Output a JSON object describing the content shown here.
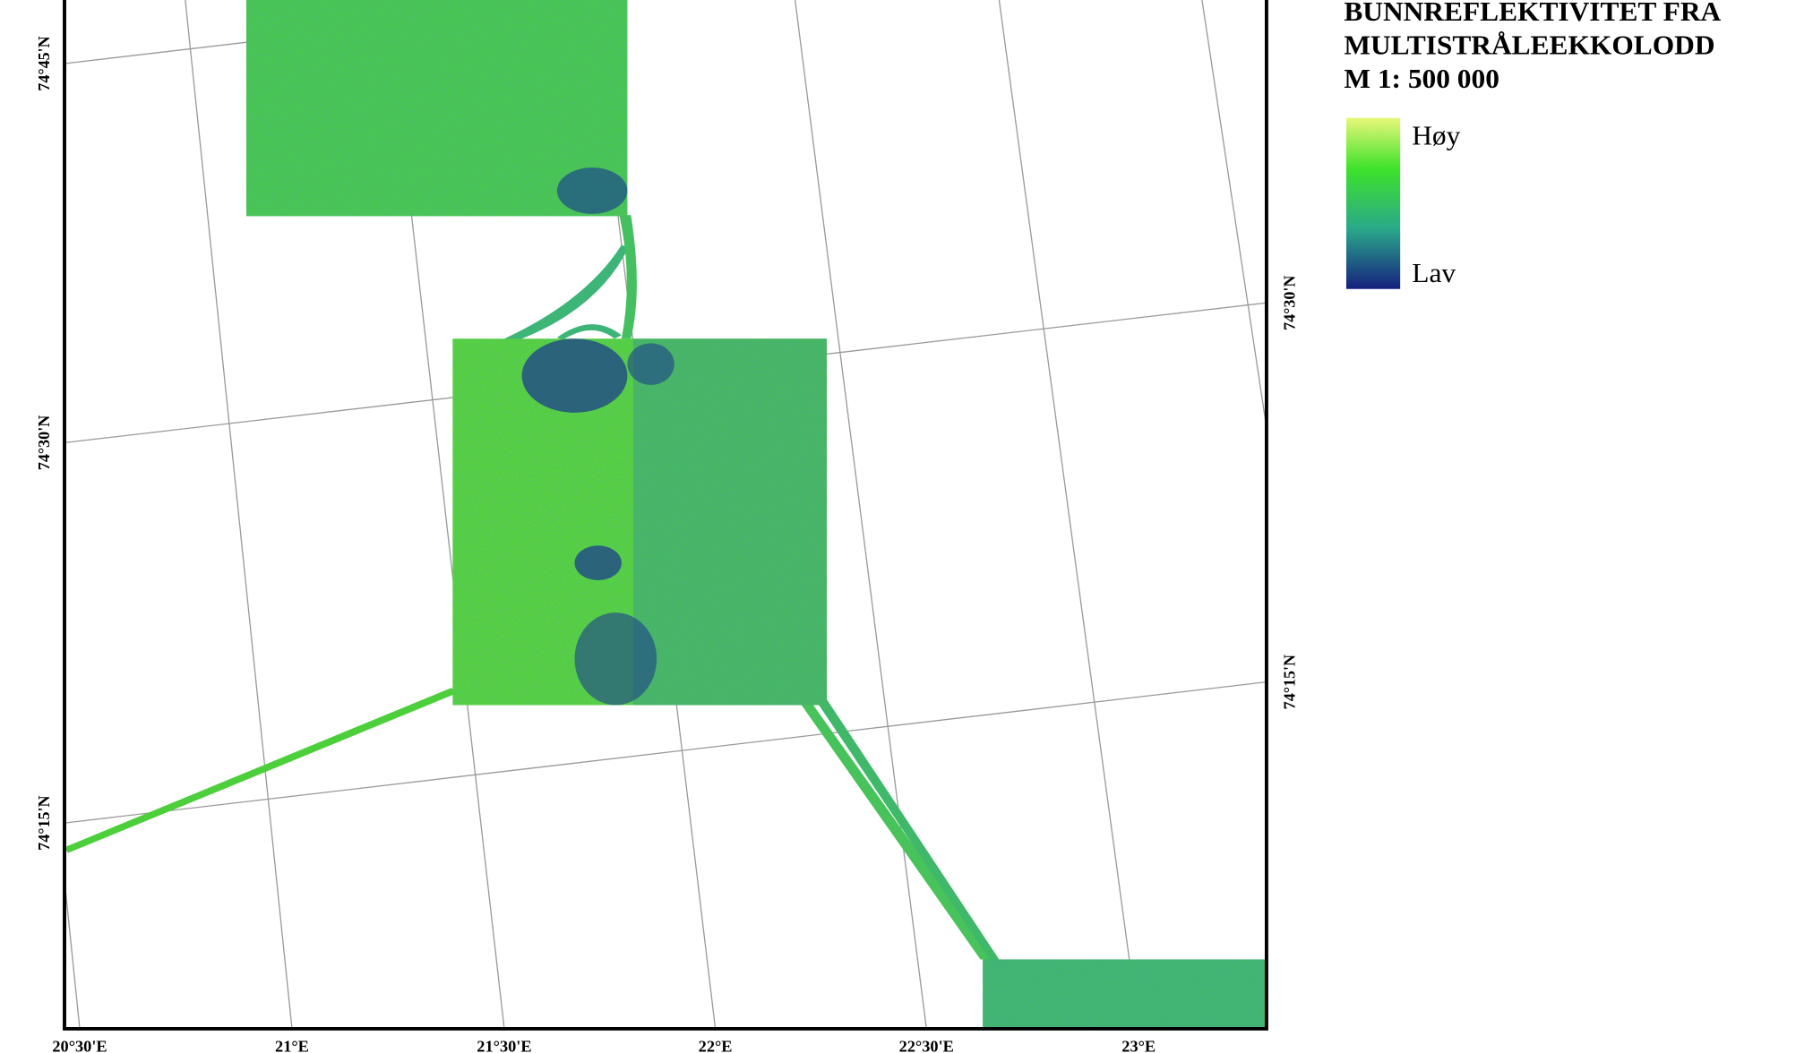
{
  "legend": {
    "title_lines": [
      "BUNNREFLEKTIVITET FRA",
      "MULTISTRÅLEEKKOLODD",
      "M 1: 500 000"
    ],
    "high": "Høy",
    "low": "Lav"
  },
  "left_labels": [
    "74°45'N",
    "74°30'N",
    "74°15'N"
  ],
  "right_labels": [
    "74°30'N",
    "74°15'N"
  ],
  "bottom_labels": [
    "20°30'E",
    "21°E",
    "21°30'E",
    "22°E",
    "22°30'E",
    "23°E"
  ]
}
